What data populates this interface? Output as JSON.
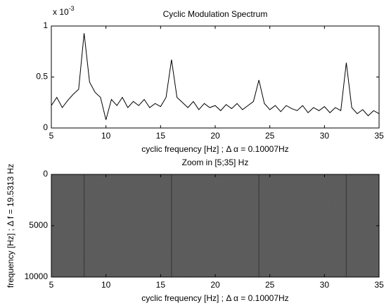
{
  "chart_data": [
    {
      "type": "line",
      "title": "Cyclic Modulation Spectrum",
      "x_label": "cyclic frequency [Hz] ; Δ α = 0.10007Hz",
      "y_scale_base": "x 10",
      "y_scale_exponent": "-3",
      "xlim": [
        5,
        35
      ],
      "xticks": [
        5,
        10,
        15,
        20,
        25,
        30,
        35
      ],
      "ylim": [
        0,
        1
      ],
      "yticks": [
        0,
        0.5,
        1
      ],
      "series": [
        {
          "color": "#000000",
          "x": [
            5,
            5.5,
            6,
            6.5,
            7,
            7.5,
            8,
            8.5,
            9,
            9.5,
            10,
            10.5,
            11,
            11.5,
            12,
            12.5,
            13,
            13.5,
            14,
            14.5,
            15,
            15.5,
            16,
            16.5,
            17,
            17.5,
            18,
            18.5,
            19,
            19.5,
            20,
            20.5,
            21,
            21.5,
            22,
            22.5,
            23,
            23.5,
            24,
            24.5,
            25,
            25.5,
            26,
            26.5,
            27,
            27.5,
            28,
            28.5,
            29,
            29.5,
            30,
            30.5,
            31,
            31.5,
            32,
            32.5,
            33,
            33.5,
            34,
            34.5,
            35
          ],
          "values": [
            0.22,
            0.3,
            0.2,
            0.27,
            0.33,
            0.38,
            0.93,
            0.45,
            0.35,
            0.3,
            0.08,
            0.28,
            0.22,
            0.3,
            0.2,
            0.26,
            0.22,
            0.28,
            0.2,
            0.24,
            0.21,
            0.3,
            0.67,
            0.3,
            0.25,
            0.2,
            0.26,
            0.18,
            0.24,
            0.2,
            0.22,
            0.17,
            0.23,
            0.19,
            0.24,
            0.18,
            0.22,
            0.26,
            0.47,
            0.24,
            0.18,
            0.22,
            0.16,
            0.22,
            0.19,
            0.17,
            0.22,
            0.15,
            0.2,
            0.17,
            0.21,
            0.15,
            0.2,
            0.17,
            0.64,
            0.2,
            0.14,
            0.18,
            0.12,
            0.17,
            0.14
          ]
        }
      ]
    },
    {
      "type": "image",
      "title": "Zoom in [5;35] Hz",
      "x_label": "cyclic frequency [Hz] ; Δ α = 0.10007Hz",
      "y_label": "frequency [Hz] ; Δ f = 19.5313 Hz",
      "xlim": [
        5,
        35
      ],
      "xticks": [
        5,
        10,
        15,
        20,
        25,
        30,
        35
      ],
      "ylim": [
        0,
        10000
      ],
      "y_reversed": true,
      "yticks": [
        0,
        5000,
        10000
      ],
      "color": "#5c5c5c",
      "line_color": "#3a3a3a",
      "highlight_x": [
        8,
        16,
        24,
        32
      ]
    }
  ]
}
